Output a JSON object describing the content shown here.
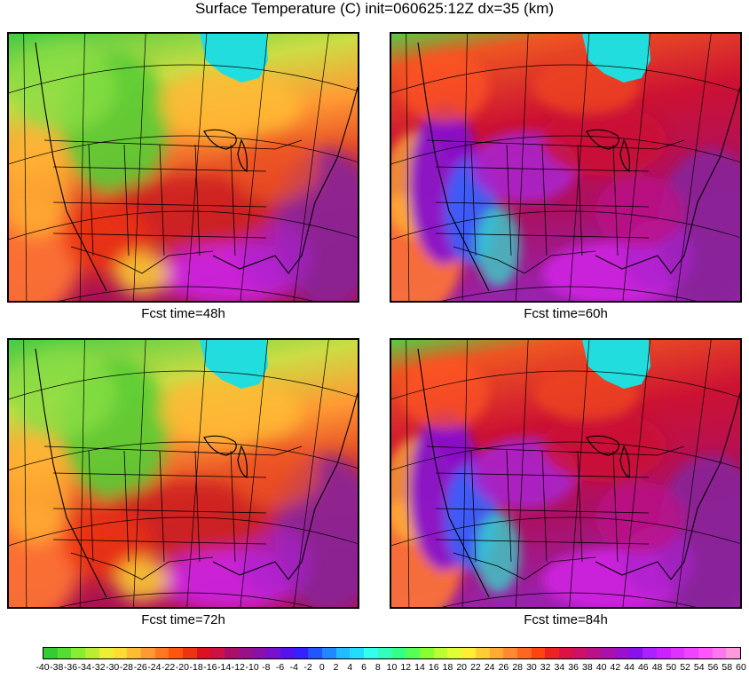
{
  "title": "Surface Temperature (C) init=060625:12Z dx=35 (km)",
  "panels": [
    {
      "caption": "Fcst time=48h",
      "forecast_hour": 48
    },
    {
      "caption": "Fcst time=60h",
      "forecast_hour": 60
    },
    {
      "caption": "Fcst time=72h",
      "forecast_hour": 72
    },
    {
      "caption": "Fcst time=84h",
      "forecast_hour": 84
    }
  ],
  "colorbar": {
    "units": "C",
    "range": [
      -40,
      60
    ],
    "step": 2,
    "tick_labels": [
      "-40",
      "-38",
      "-36",
      "-34",
      "-32",
      "-30",
      "-28",
      "-26",
      "-24",
      "-22",
      "-20",
      "-18",
      "-16",
      "-14",
      "-12",
      "-10",
      "-8",
      "-6",
      "-4",
      "-2",
      "0",
      "2",
      "4",
      "6",
      "8",
      "10",
      "12",
      "14",
      "16",
      "18",
      "20",
      "22",
      "24",
      "26",
      "28",
      "30",
      "32",
      "34",
      "36",
      "38",
      "40",
      "42",
      "44",
      "46",
      "48",
      "50",
      "52",
      "54",
      "56",
      "58",
      "60"
    ],
    "colors": [
      "#33cc33",
      "#55dd33",
      "#88ee33",
      "#bbee33",
      "#eeee33",
      "#ffdd33",
      "#ffbb33",
      "#ff9933",
      "#ff7722",
      "#ff5511",
      "#ee3311",
      "#dd1122",
      "#cc1144",
      "#aa1166",
      "#991188",
      "#8811aa",
      "#7711cc",
      "#5511ee",
      "#3322ff",
      "#2255ff",
      "#2288ff",
      "#22bbff",
      "#22ddff",
      "#33ffee",
      "#33ffbb",
      "#33ff88",
      "#55ff55",
      "#88ff33",
      "#bbff33",
      "#ddff33",
      "#ffee33",
      "#ffcc33",
      "#ffaa33",
      "#ff8833",
      "#ff6622",
      "#ff4411",
      "#ee2222",
      "#dd1144",
      "#cc1166",
      "#bb1188",
      "#aa11aa",
      "#9911cc",
      "#8811ee",
      "#aa22ff",
      "#cc22ff",
      "#dd33ff",
      "#ee44ff",
      "#ff55ff",
      "#ff77ee",
      "#ff99dd"
    ]
  },
  "legend": {
    "cold_colors": [
      "#44cc44",
      "#88dd44",
      "#ccee44",
      "#ffee44"
    ],
    "warm_colors": [
      "#ffaa33",
      "#ff6622",
      "#dd2222",
      "#aa1155",
      "#882299",
      "#aa22cc",
      "#dd22ee"
    ],
    "lake_color": "#22dddd"
  }
}
